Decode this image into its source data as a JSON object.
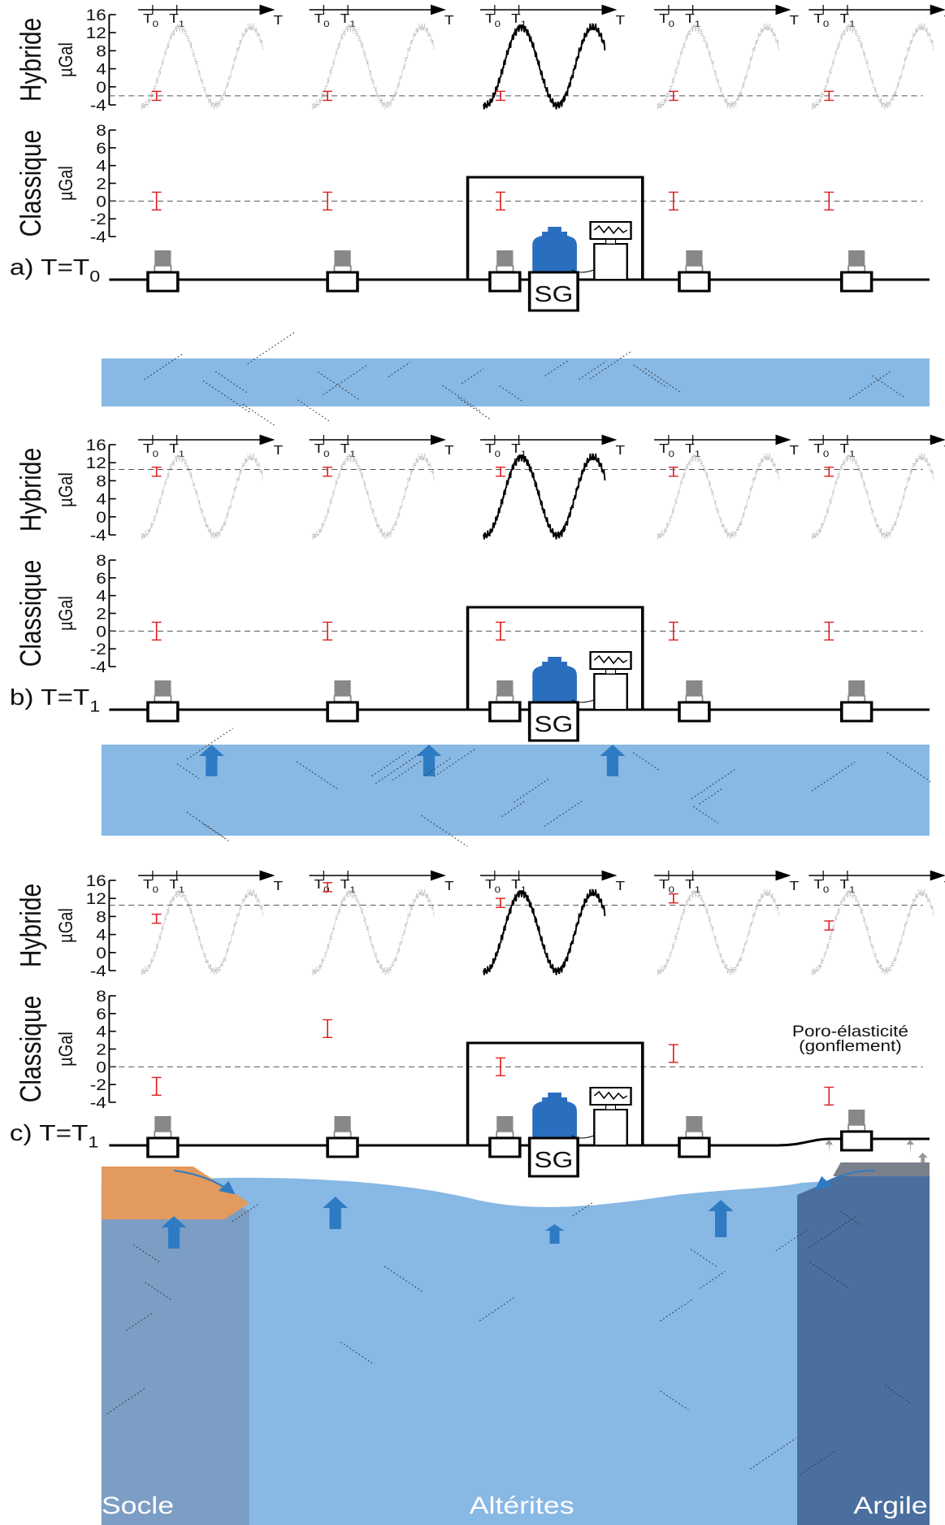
{
  "panels": [
    {
      "label": "a) T=T",
      "label_sub": "0",
      "hybrid": {
        "label": "Hybride",
        "unit": "µGal",
        "ylim": [
          -4,
          16
        ],
        "yticks": [
          -4,
          0,
          4,
          8,
          12,
          16
        ],
        "reference": -2,
        "values": [
          -2,
          -2,
          -2,
          -2,
          -2
        ],
        "errors": [
          1,
          1,
          1,
          1,
          1
        ]
      },
      "classique": {
        "label": "Classique",
        "unit": "µGal",
        "ylim": [
          -4,
          8
        ],
        "yticks": [
          -4,
          -2,
          0,
          2,
          4,
          6,
          8
        ],
        "reference": 0,
        "values": [
          0,
          0,
          0,
          0,
          0
        ],
        "errors": [
          1,
          1,
          1,
          1,
          1
        ]
      }
    },
    {
      "label": "b) T=T",
      "label_sub": "1",
      "hybrid": {
        "label": "Hybride",
        "unit": "µGal",
        "ylim": [
          -4,
          16
        ],
        "yticks": [
          -4,
          0,
          4,
          8,
          12,
          16
        ],
        "reference": 10.5,
        "values": [
          10,
          10,
          10,
          10,
          10
        ],
        "errors": [
          1,
          1,
          1,
          1,
          1
        ]
      },
      "classique": {
        "label": "Classique",
        "unit": "µGal",
        "ylim": [
          -4,
          8
        ],
        "yticks": [
          -4,
          -2,
          0,
          2,
          4,
          6,
          8
        ],
        "reference": 0,
        "values": [
          0,
          0,
          0,
          0,
          0
        ],
        "errors": [
          1,
          1,
          1,
          1,
          1
        ]
      }
    },
    {
      "label": "c) T=T",
      "label_sub": "1",
      "hybrid": {
        "label": "Hybride",
        "unit": "µGal",
        "ylim": [
          -4,
          16
        ],
        "yticks": [
          -4,
          0,
          4,
          8,
          12,
          16
        ],
        "reference": 10.5,
        "values": [
          7.5,
          14.5,
          11,
          12,
          6
        ],
        "errors": [
          1,
          1,
          1,
          1,
          1
        ]
      },
      "classique": {
        "label": "Classique",
        "unit": "µGal",
        "ylim": [
          -4,
          8
        ],
        "yticks": [
          -4,
          -2,
          0,
          2,
          4,
          6,
          8
        ],
        "reference": 0,
        "values": [
          -2.2,
          4.3,
          0,
          1.5,
          -3.3
        ],
        "errors": [
          1,
          1,
          1,
          1,
          1
        ]
      },
      "annotation": [
        "Poro-élasticité",
        "(gonflement)"
      ]
    }
  ],
  "timeline": {
    "t0": "T",
    "t0_sub": "0",
    "t1": "T",
    "t1_sub": "1",
    "t_end": "T"
  },
  "sg_label": "SG",
  "geology": {
    "socle": "Socle",
    "alterites": "Altérites",
    "argile": "Argile"
  }
}
